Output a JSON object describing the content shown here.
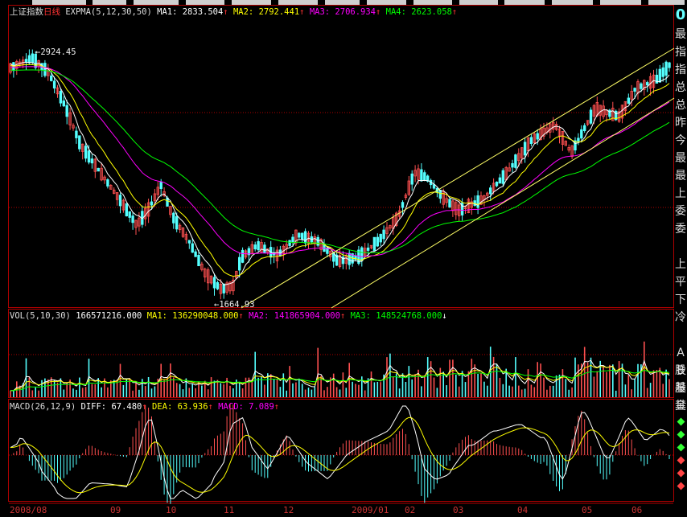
{
  "main_legend": {
    "title": "上证指数",
    "period": "日线",
    "indicator": "EXPMA(5,12,30,50)",
    "ma1": "MA1: 2833.504",
    "ma2": "MA2: 2792.441",
    "ma3": "MA3: 2706.934",
    "ma4": "MA4: 2623.058"
  },
  "vol_legend": {
    "name": "VOL(5,10,30)",
    "value": "166571216.000",
    "ma1": "MA1: 136290048.000",
    "ma2": "MA2: 141865904.000",
    "ma3": "MA3: 148524768.000"
  },
  "macd_legend": {
    "name": "MACD(26,12,9)",
    "diff": "DIFF: 67.480",
    "dea": "DEA: 63.936",
    "macd": "MACD: 7.089"
  },
  "annotations": {
    "high": "←2924.45",
    "low": "←1664.93"
  },
  "side_panel": [
    "0",
    "最",
    "指",
    "指",
    "总",
    "总",
    "昨",
    "今",
    "最",
    "最",
    "上",
    "委",
    "委",
    "",
    "上",
    "平",
    "下",
    "冷",
    "",
    "A股",
    "B股",
    "基金",
    "其"
  ],
  "date_axis": [
    "2008/08",
    "09",
    "10",
    "11",
    "12",
    "2009/01",
    "02",
    "03",
    "04",
    "05",
    "06"
  ],
  "colors": {
    "up": "#ff5050",
    "down": "#54ffff",
    "ma1": "#ffffff",
    "ma2": "#ffff00",
    "ma3": "#ff00ff",
    "ma4": "#00ff00",
    "channel": "#ffff66",
    "grid": "#b00000"
  },
  "chart_data": {
    "type": "candlestick",
    "high": 2924.45,
    "low": 1664.93,
    "ema": {
      "ma1": 2833.504,
      "ma2": 2792.441,
      "ma3": 2706.934,
      "ma4": 2623.058
    },
    "volume": 166571216,
    "macd": {
      "diff": 67.48,
      "dea": 63.936,
      "macd": 7.089
    }
  }
}
